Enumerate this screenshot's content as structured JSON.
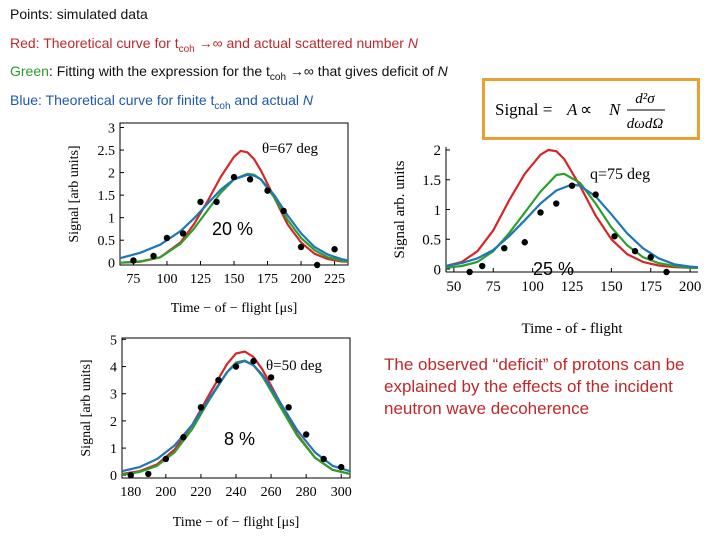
{
  "header": {
    "line1": {
      "label": "Points",
      "text": ": simulated data"
    },
    "line2": {
      "label": "Red",
      "text1": ": Theoretical curve for t",
      "sub": "coh",
      "text2": " →∞ and actual scattered number ",
      "var": "N"
    },
    "line3": {
      "label": "Green",
      "text1": ": Fitting with the expression for the t",
      "sub": "coh",
      "text2": " →∞ that gives deficit of ",
      "var": "N"
    },
    "line4": {
      "label": "Blue",
      "text1": ": Theoretical curve for finite t",
      "sub": "coh",
      "text2": " and actual ",
      "var": "N"
    }
  },
  "formula": {
    "lhs": "Signal = ",
    "A": "A",
    "prop": " ∝ ",
    "N": "N",
    "num": "d²σ",
    "den": "dωdΩ"
  },
  "conclusion": "The observed “deficit” of protons can be explained by the effects of the incident neutron wave decoherence",
  "colors": {
    "theoretical": "#d62728",
    "fit": "#2ca02c",
    "finite": "#1f77b4",
    "points": "#000000",
    "formula_border": "#e8a030"
  },
  "chart_data": [
    {
      "type": "line",
      "angle_label": "θ=67 deg",
      "deficit_label": "20 %",
      "xlabel": "Time − of − flight [μs]",
      "ylabel": "Signal [arb units]",
      "xlim": [
        65,
        235
      ],
      "ylim": [
        -0.05,
        3.1
      ],
      "xticks": [
        75,
        100,
        125,
        150,
        175,
        200,
        225
      ],
      "yticks": [
        0,
        0.5,
        1,
        1.5,
        2,
        2.5,
        3
      ],
      "ytick_labels": [
        "0",
        "0.5",
        "1",
        "1.5",
        "2",
        "2.5",
        "3"
      ],
      "series": [
        {
          "role": "theoretical",
          "color": "#d62728",
          "x": [
            65,
            80,
            95,
            110,
            120,
            130,
            140,
            150,
            155,
            160,
            165,
            170,
            180,
            190,
            200,
            210,
            220,
            230,
            235
          ],
          "y": [
            0.0,
            0.02,
            0.12,
            0.45,
            0.85,
            1.35,
            1.9,
            2.35,
            2.48,
            2.45,
            2.3,
            2.05,
            1.45,
            0.85,
            0.45,
            0.2,
            0.08,
            0.03,
            0.02
          ]
        },
        {
          "role": "fit",
          "color": "#2ca02c",
          "x": [
            65,
            80,
            95,
            110,
            120,
            130,
            140,
            150,
            160,
            165,
            170,
            180,
            190,
            200,
            210,
            220,
            230,
            235
          ],
          "y": [
            0.0,
            0.03,
            0.12,
            0.42,
            0.75,
            1.15,
            1.55,
            1.85,
            1.97,
            1.95,
            1.85,
            1.45,
            0.95,
            0.55,
            0.28,
            0.12,
            0.05,
            0.03
          ]
        },
        {
          "role": "finite",
          "color": "#1f77b4",
          "x": [
            65,
            80,
            95,
            110,
            120,
            130,
            140,
            150,
            160,
            165,
            170,
            180,
            190,
            200,
            210,
            220,
            230,
            235
          ],
          "y": [
            0.1,
            0.22,
            0.4,
            0.7,
            0.98,
            1.3,
            1.62,
            1.85,
            1.95,
            1.93,
            1.85,
            1.5,
            1.05,
            0.65,
            0.35,
            0.18,
            0.08,
            0.05
          ]
        }
      ],
      "points": {
        "x": [
          75,
          90,
          100,
          112,
          125,
          137,
          150,
          162,
          175,
          187,
          200,
          212,
          225
        ],
        "y": [
          0.05,
          0.15,
          0.55,
          0.65,
          1.35,
          1.35,
          1.9,
          1.85,
          1.6,
          1.15,
          0.35,
          -0.05,
          0.3
        ]
      }
    },
    {
      "type": "line",
      "angle_label": "q=75 deg",
      "deficit_label": "25 %",
      "xlabel": "Time - of - flight",
      "ylabel": "Signal arb. units",
      "xlim": [
        45,
        205
      ],
      "ylim": [
        -0.05,
        2.05
      ],
      "xticks": [
        50,
        75,
        100,
        125,
        150,
        175,
        200
      ],
      "yticks": [
        0,
        0.5,
        1,
        1.5,
        2
      ],
      "ytick_labels": [
        "0",
        "0.5",
        "1",
        "1.5",
        "2"
      ],
      "series": [
        {
          "role": "theoretical",
          "color": "#d62728",
          "x": [
            45,
            55,
            65,
            75,
            85,
            95,
            105,
            110,
            115,
            120,
            130,
            140,
            150,
            160,
            170,
            180,
            190,
            200,
            205
          ],
          "y": [
            0.05,
            0.12,
            0.3,
            0.65,
            1.15,
            1.6,
            1.92,
            2.0,
            1.98,
            1.85,
            1.4,
            0.9,
            0.5,
            0.25,
            0.12,
            0.06,
            0.03,
            0.02,
            0.02
          ]
        },
        {
          "role": "fit",
          "color": "#2ca02c",
          "x": [
            45,
            55,
            65,
            75,
            85,
            95,
            105,
            115,
            120,
            130,
            140,
            150,
            160,
            170,
            180,
            190,
            200,
            205
          ],
          "y": [
            0.02,
            0.05,
            0.12,
            0.3,
            0.6,
            0.95,
            1.3,
            1.58,
            1.6,
            1.45,
            1.1,
            0.7,
            0.4,
            0.2,
            0.1,
            0.05,
            0.02,
            0.02
          ]
        },
        {
          "role": "finite",
          "color": "#1f77b4",
          "x": [
            45,
            55,
            65,
            75,
            85,
            95,
            105,
            115,
            125,
            130,
            140,
            150,
            160,
            170,
            180,
            190,
            200,
            205
          ],
          "y": [
            0.05,
            0.1,
            0.18,
            0.32,
            0.55,
            0.82,
            1.1,
            1.32,
            1.42,
            1.4,
            1.22,
            0.92,
            0.6,
            0.35,
            0.18,
            0.08,
            0.04,
            0.03
          ]
        }
      ],
      "points": {
        "x": [
          60,
          68,
          82,
          95,
          105,
          115,
          125,
          140,
          152,
          165,
          175,
          185
        ],
        "y": [
          -0.05,
          0.05,
          0.35,
          0.45,
          0.95,
          1.1,
          1.4,
          1.25,
          0.55,
          0.3,
          0.2,
          -0.05
        ]
      }
    },
    {
      "type": "line",
      "angle_label": "θ=50 deg",
      "deficit_label": "8 %",
      "xlabel": "Time − of − flight [μs]",
      "ylabel": "Signal [arb units]",
      "xlim": [
        175,
        305
      ],
      "ylim": [
        -0.1,
        5.05
      ],
      "xticks": [
        180,
        200,
        220,
        240,
        260,
        280,
        300
      ],
      "yticks": [
        0,
        1,
        2,
        3,
        4,
        5
      ],
      "ytick_labels": [
        "0",
        "1",
        "2",
        "3",
        "4",
        "5"
      ],
      "series": [
        {
          "role": "theoretical",
          "color": "#d62728",
          "x": [
            175,
            185,
            195,
            205,
            215,
            225,
            235,
            240,
            245,
            250,
            255,
            265,
            275,
            285,
            295,
            305
          ],
          "y": [
            0.05,
            0.15,
            0.4,
            0.95,
            1.85,
            3.0,
            4.1,
            4.48,
            4.55,
            4.35,
            3.9,
            2.7,
            1.5,
            0.65,
            0.2,
            0.05
          ]
        },
        {
          "role": "fit",
          "color": "#2ca02c",
          "x": [
            175,
            185,
            195,
            205,
            215,
            225,
            235,
            240,
            245,
            250,
            255,
            265,
            275,
            285,
            295,
            305
          ],
          "y": [
            0.02,
            0.12,
            0.35,
            0.85,
            1.7,
            2.8,
            3.8,
            4.15,
            4.22,
            4.05,
            3.65,
            2.55,
            1.45,
            0.65,
            0.2,
            0.05
          ]
        },
        {
          "role": "finite",
          "color": "#1f77b4",
          "x": [
            175,
            185,
            195,
            205,
            215,
            225,
            235,
            240,
            245,
            250,
            255,
            265,
            275,
            285,
            295,
            305
          ],
          "y": [
            0.15,
            0.3,
            0.6,
            1.1,
            1.85,
            2.85,
            3.8,
            4.1,
            4.2,
            4.05,
            3.7,
            2.7,
            1.65,
            0.85,
            0.35,
            0.15
          ]
        }
      ],
      "points": {
        "x": [
          180,
          190,
          200,
          210,
          220,
          230,
          240,
          250,
          260,
          270,
          280,
          290,
          300
        ],
        "y": [
          0.0,
          0.05,
          0.6,
          1.4,
          2.5,
          3.5,
          4.0,
          4.2,
          3.6,
          2.5,
          1.5,
          0.6,
          0.3
        ]
      }
    }
  ]
}
